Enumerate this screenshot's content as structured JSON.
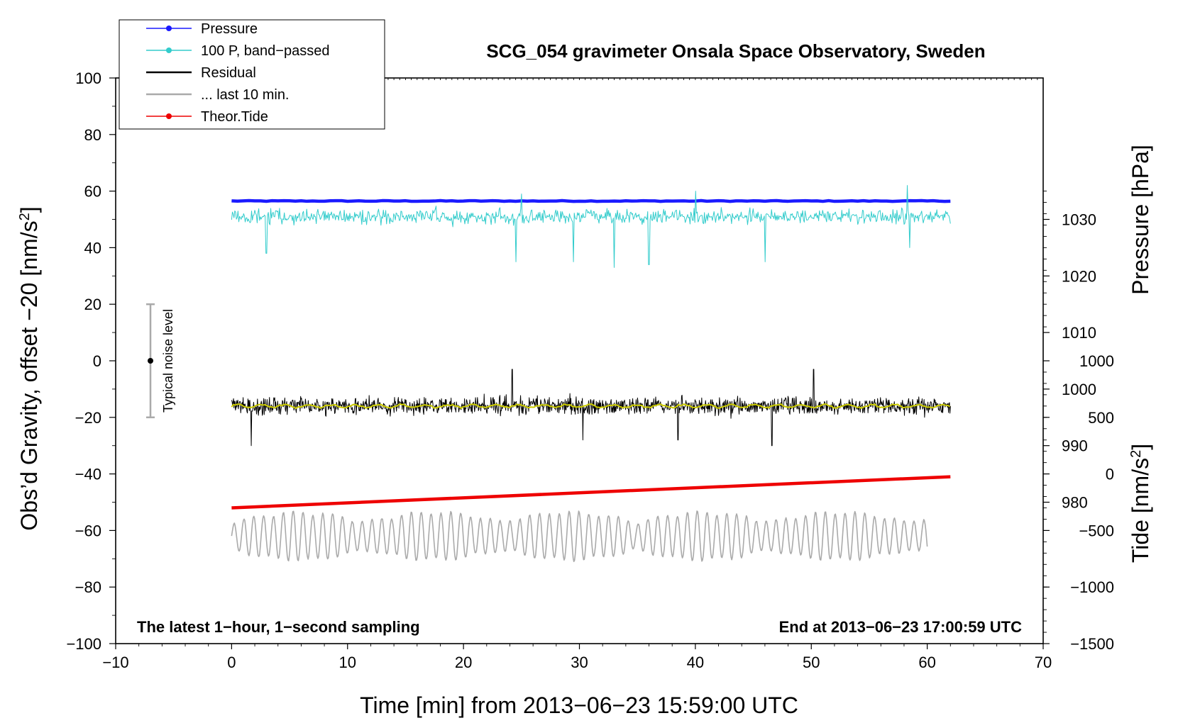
{
  "chart_data": {
    "type": "line",
    "title": "SCG_054 gravimeter Onsala Space Observatory, Sweden",
    "xlabel": "Time [min] from 2013−06−23 15:59:00 UTC",
    "ylabel_left": "Obs’d Gravity, offset −20 [nm/s",
    "ylabel_left_sup": "2",
    "ylabel_left_end": "]",
    "ylabel_right_pressure": "Pressure [hPa]",
    "ylabel_right_tide": "Tide [nm/s",
    "ylabel_right_tide_sup": "2",
    "ylabel_right_tide_end": "]",
    "xlim": [
      -10,
      70
    ],
    "ylim": [
      -100,
      100
    ],
    "x_ticks": [
      "−10",
      "0",
      "10",
      "20",
      "30",
      "40",
      "50",
      "60",
      "70"
    ],
    "y_ticks": [
      "100",
      "80",
      "60",
      "40",
      "20",
      "0",
      "−20",
      "−40",
      "−60",
      "−80",
      "−100"
    ],
    "pressure_axis": {
      "ticks": [
        "1030",
        "1020",
        "1010",
        "1000",
        "990",
        "980"
      ],
      "tick_values": [
        1030,
        1020,
        1010,
        1000,
        990,
        980
      ],
      "mapping": {
        "value_at_y0": 1005,
        "hpa_per_unit_left": 0.5
      }
    },
    "tide_axis": {
      "ticks": [
        "1000",
        "500",
        "0",
        "−500",
        "−1000",
        "−1500"
      ],
      "tick_values": [
        1000,
        500,
        0,
        -500,
        -1000,
        -1500
      ],
      "mapping": {
        "value_at_y0": 1000,
        "value_at_y_minus100": -1500
      }
    },
    "legend": {
      "placement": "top-left",
      "entries": [
        {
          "label": "Pressure",
          "color": "#1a1aff",
          "marker": true
        },
        {
          "label": "100 P, band−passed",
          "color": "#33cccc",
          "marker": true
        },
        {
          "label": "Residual",
          "color": "#000000",
          "marker": false
        },
        {
          "label": "... last 10 min.",
          "color": "#aaaaaa",
          "marker": false
        },
        {
          "label": "Theor.Tide",
          "color": "#ee0000",
          "marker": true
        }
      ]
    },
    "annotations": {
      "bottom_left": "The latest 1−hour, 1−second sampling",
      "bottom_right": "End at 2013−06−23 17:00:59 UTC",
      "noise_label": "Typical noise level",
      "noise_bar": {
        "x": -7,
        "center": 0,
        "range": [
          -20,
          20
        ]
      }
    },
    "series": [
      {
        "name": "Pressure",
        "color": "#1a1aff",
        "x_range": [
          0,
          62
        ],
        "level": 56.5,
        "style": "flat"
      },
      {
        "name": "100 P, band−passed",
        "color": "#33cccc",
        "x_range": [
          0,
          62
        ],
        "level": 51,
        "style": "noise",
        "spikes": [
          [
            3,
            38
          ],
          [
            24.5,
            35
          ],
          [
            29.5,
            35
          ],
          [
            33,
            33
          ],
          [
            36,
            34
          ],
          [
            46,
            35
          ],
          [
            58.5,
            40
          ],
          [
            58.3,
            62
          ],
          [
            40,
            60
          ],
          [
            25,
            59
          ]
        ]
      },
      {
        "name": "Residual",
        "color": "#000000",
        "x_range": [
          0,
          62
        ],
        "level": -16,
        "style": "noise",
        "spikes": [
          [
            1.7,
            -30
          ],
          [
            24.2,
            -3
          ],
          [
            50.2,
            -3
          ],
          [
            46.6,
            -30
          ],
          [
            38.5,
            -28
          ],
          [
            30.3,
            -28
          ]
        ]
      },
      {
        "name": "Residual (smoothed)",
        "color": "#cccc00",
        "x_range": [
          0,
          62
        ],
        "level": -16,
        "style": "smooth"
      },
      {
        "name": "... last 10 min.",
        "color": "#aaaaaa",
        "x_range": [
          0,
          60
        ],
        "level": -62,
        "style": "oscillation"
      },
      {
        "name": "Theor.Tide",
        "color": "#ee0000",
        "x_range": [
          0,
          62
        ],
        "y_start": -52,
        "y_end": -41,
        "style": "linear"
      }
    ]
  }
}
